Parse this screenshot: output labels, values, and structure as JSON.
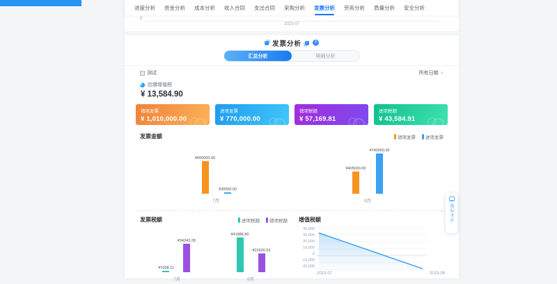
{
  "nav": {
    "tabs": [
      {
        "label": "进度分析",
        "active": false
      },
      {
        "label": "资金分析",
        "active": false
      },
      {
        "label": "成本分析",
        "active": false
      },
      {
        "label": "收入合同",
        "active": false
      },
      {
        "label": "支出合同",
        "active": false
      },
      {
        "label": "采购分析",
        "active": false
      },
      {
        "label": "发票分析",
        "active": true
      },
      {
        "label": "劳务分析",
        "active": false
      },
      {
        "label": "质量分析",
        "active": false
      },
      {
        "label": "安全分析",
        "active": false
      }
    ],
    "collapse_icon": "∨",
    "active_color": "#1677ff"
  },
  "remnant": {
    "y_zero": "0",
    "x_label": "2023-07"
  },
  "header": {
    "title": "发票分析",
    "help_icon": "?"
  },
  "view_toggle": {
    "options": [
      {
        "label": "汇总分析",
        "active": true
      },
      {
        "label": "明细分析",
        "active": false
      }
    ]
  },
  "filter": {
    "org_label": "测试",
    "date_label": "所有日期",
    "chevron": "∨"
  },
  "kpi": {
    "label": "应缴增值税",
    "value": "¥ 13,584.90"
  },
  "summary_cards": [
    {
      "label": "销项发票",
      "value": "¥ 1,010,000.00",
      "theme": "orange",
      "color": "#f0823a"
    },
    {
      "label": "进项发票",
      "value": "¥ 770,000.00",
      "theme": "blue",
      "color": "#1e9bf0"
    },
    {
      "label": "销项税额",
      "value": "¥ 57,169.81",
      "theme": "purple",
      "color": "#a32cdc"
    },
    {
      "label": "进项税额",
      "value": "¥ 43,584.91",
      "theme": "green",
      "color": "#0fbf8f"
    }
  ],
  "chart_data": [
    {
      "type": "bar",
      "title": "发票金额",
      "categories": [
        "7月",
        "8月"
      ],
      "ymax": 740000,
      "legend_position": "top-right",
      "series": [
        {
          "name": "销项发票",
          "color": "#f7941e",
          "values": [
            605000.0,
            405000.0
          ],
          "labels": [
            "¥605000.00",
            "¥405000.00"
          ]
        },
        {
          "name": "进项发票",
          "color": "#3aa1f6",
          "values": [
            30000.0,
            740000.0
          ],
          "labels": [
            "¥30000.00",
            "¥740000.00"
          ]
        }
      ]
    },
    {
      "type": "bar",
      "title": "发票税额",
      "categories": [
        "7月",
        "8月"
      ],
      "ymax": 41886.8,
      "legend_position": "top-right",
      "series": [
        {
          "name": "进项税额",
          "color": "#2ec7b2",
          "values": [
            1698.11,
            41886.8
          ],
          "labels": [
            "¥1698.11",
            "¥41886.80"
          ]
        },
        {
          "name": "销项税额",
          "color": "#9b51e0",
          "values": [
            34243.28,
            22926.53
          ],
          "labels": [
            "¥34243.28",
            "¥22926.53"
          ]
        }
      ]
    },
    {
      "type": "area",
      "title": "增值税额",
      "x": [
        "2023-07",
        "2023-08"
      ],
      "values": [
        32545.17,
        -18960.27
      ],
      "ylim": [
        -20000,
        40000
      ],
      "ytick_values": [
        40000,
        30000,
        20000,
        10000,
        0,
        -10000,
        -20000
      ],
      "yticks": [
        "40,000",
        "30,000",
        "20,000",
        "10,000",
        "0",
        "-10,000",
        "-20,000"
      ],
      "line_color": "#3da1f5",
      "grid": true
    }
  ],
  "float_widget": {
    "label": "指标卡片",
    "collapse_icon": "‹"
  }
}
